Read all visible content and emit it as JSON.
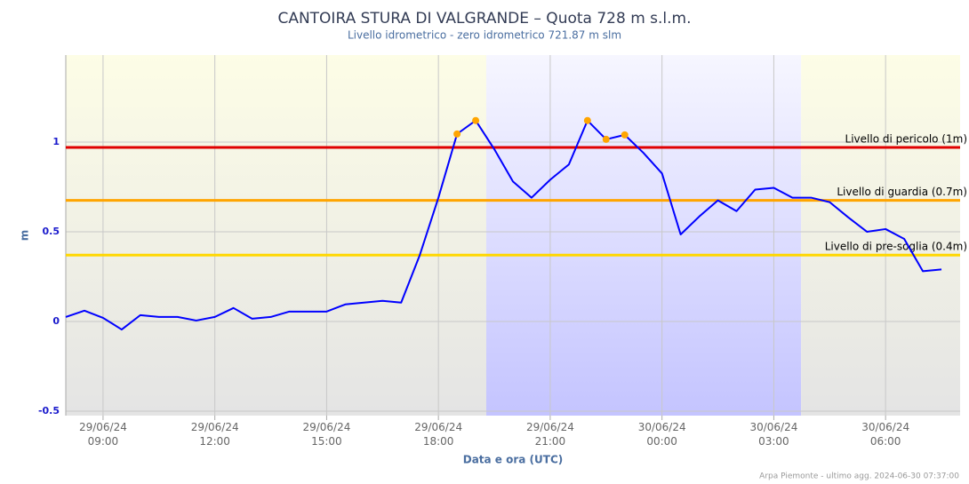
{
  "chart_data": {
    "type": "line",
    "title": "CANTOIRA STURA DI VALGRANDE – Quota 728 m s.l.m.",
    "subtitle": "Livello idrometrico - zero idrometrico 721.87 m slm",
    "y_label": "m",
    "x_label": "Data e ora (UTC)",
    "credits": "Arpa Piemonte - ultimo agg. 2024-06-30 07:37:00",
    "x": [
      "29/06/24 08:00",
      "29/06/24 08:30",
      "29/06/24 09:00",
      "29/06/24 09:30",
      "29/06/24 10:00",
      "29/06/24 10:30",
      "29/06/24 11:00",
      "29/06/24 11:30",
      "29/06/24 12:00",
      "29/06/24 12:30",
      "29/06/24 13:00",
      "29/06/24 13:30",
      "29/06/24 14:00",
      "29/06/24 14:30",
      "29/06/24 15:00",
      "29/06/24 15:30",
      "29/06/24 16:00",
      "29/06/24 16:30",
      "29/06/24 17:00",
      "29/06/24 17:30",
      "29/06/24 18:00",
      "29/06/24 18:30",
      "29/06/24 19:00",
      "29/06/24 19:30",
      "29/06/24 20:00",
      "29/06/24 20:30",
      "29/06/24 21:00",
      "29/06/24 21:30",
      "29/06/24 22:00",
      "29/06/24 22:30",
      "29/06/24 23:00",
      "29/06/24 23:30",
      "30/06/24 00:00",
      "30/06/24 00:30",
      "30/06/24 01:00",
      "30/06/24 01:30",
      "30/06/24 02:00",
      "30/06/24 02:30",
      "30/06/24 03:00",
      "30/06/24 03:30",
      "30/06/24 04:00",
      "30/06/24 04:30",
      "30/06/24 05:00",
      "30/06/24 05:30",
      "30/06/24 06:00",
      "30/06/24 06:30",
      "30/06/24 07:00",
      "30/06/24 07:30"
    ],
    "series": [
      {
        "color": "#0000ff",
        "marker_color": "#ffa500",
        "values": [
          0.025,
          0.06,
          0.02,
          -0.045,
          0.035,
          0.025,
          0.025,
          0.005,
          0.025,
          0.075,
          0.015,
          0.025,
          0.055,
          0.055,
          0.055,
          0.095,
          0.105,
          0.115,
          0.105,
          0.37,
          0.69,
          1.045,
          1.12,
          0.96,
          0.78,
          0.69,
          0.79,
          0.875,
          1.12,
          1.015,
          1.04,
          0.94,
          0.825,
          0.485,
          0.585,
          0.675,
          0.615,
          0.735,
          0.745,
          0.69,
          0.69,
          0.665,
          0.58,
          0.5,
          0.515,
          0.46,
          0.28,
          0.29
        ]
      }
    ],
    "thresholds": [
      {
        "label": "Livello di pericolo (1m)",
        "value": 0.97,
        "color": "#e00000"
      },
      {
        "label": "Livello di guardia (0.7m)",
        "value": 0.675,
        "color": "#ffa500"
      },
      {
        "label": "Livello di pre-soglia (0.4m)",
        "value": 0.37,
        "color": "#ffd700"
      }
    ],
    "plot_bands": [
      {
        "from": "29/06/24 08:00",
        "to": "29/06/24 19:17",
        "color_top": "#fdfde6",
        "color_bottom": "#e4e4e4"
      },
      {
        "from": "29/06/24 19:17",
        "to": "30/06/24 03:44",
        "color_top": "#f6f6ff",
        "color_bottom": "#c4c4ff"
      },
      {
        "from": "30/06/24 03:44",
        "to": "30/06/24 08:00",
        "color_top": "#fdfde6",
        "color_bottom": "#e4e4e4"
      }
    ],
    "xlim": [
      "29/06/24 08:00",
      "30/06/24 08:00"
    ],
    "xticks": [
      "29/06/24 09:00",
      "29/06/24 12:00",
      "29/06/24 15:00",
      "29/06/24 18:00",
      "29/06/24 21:00",
      "30/06/24 00:00",
      "30/06/24 03:00",
      "30/06/24 06:00"
    ],
    "ylim": [
      -0.525,
      1.485
    ],
    "yticks": [
      -0.5,
      0,
      0.5,
      1
    ],
    "grid": true
  }
}
